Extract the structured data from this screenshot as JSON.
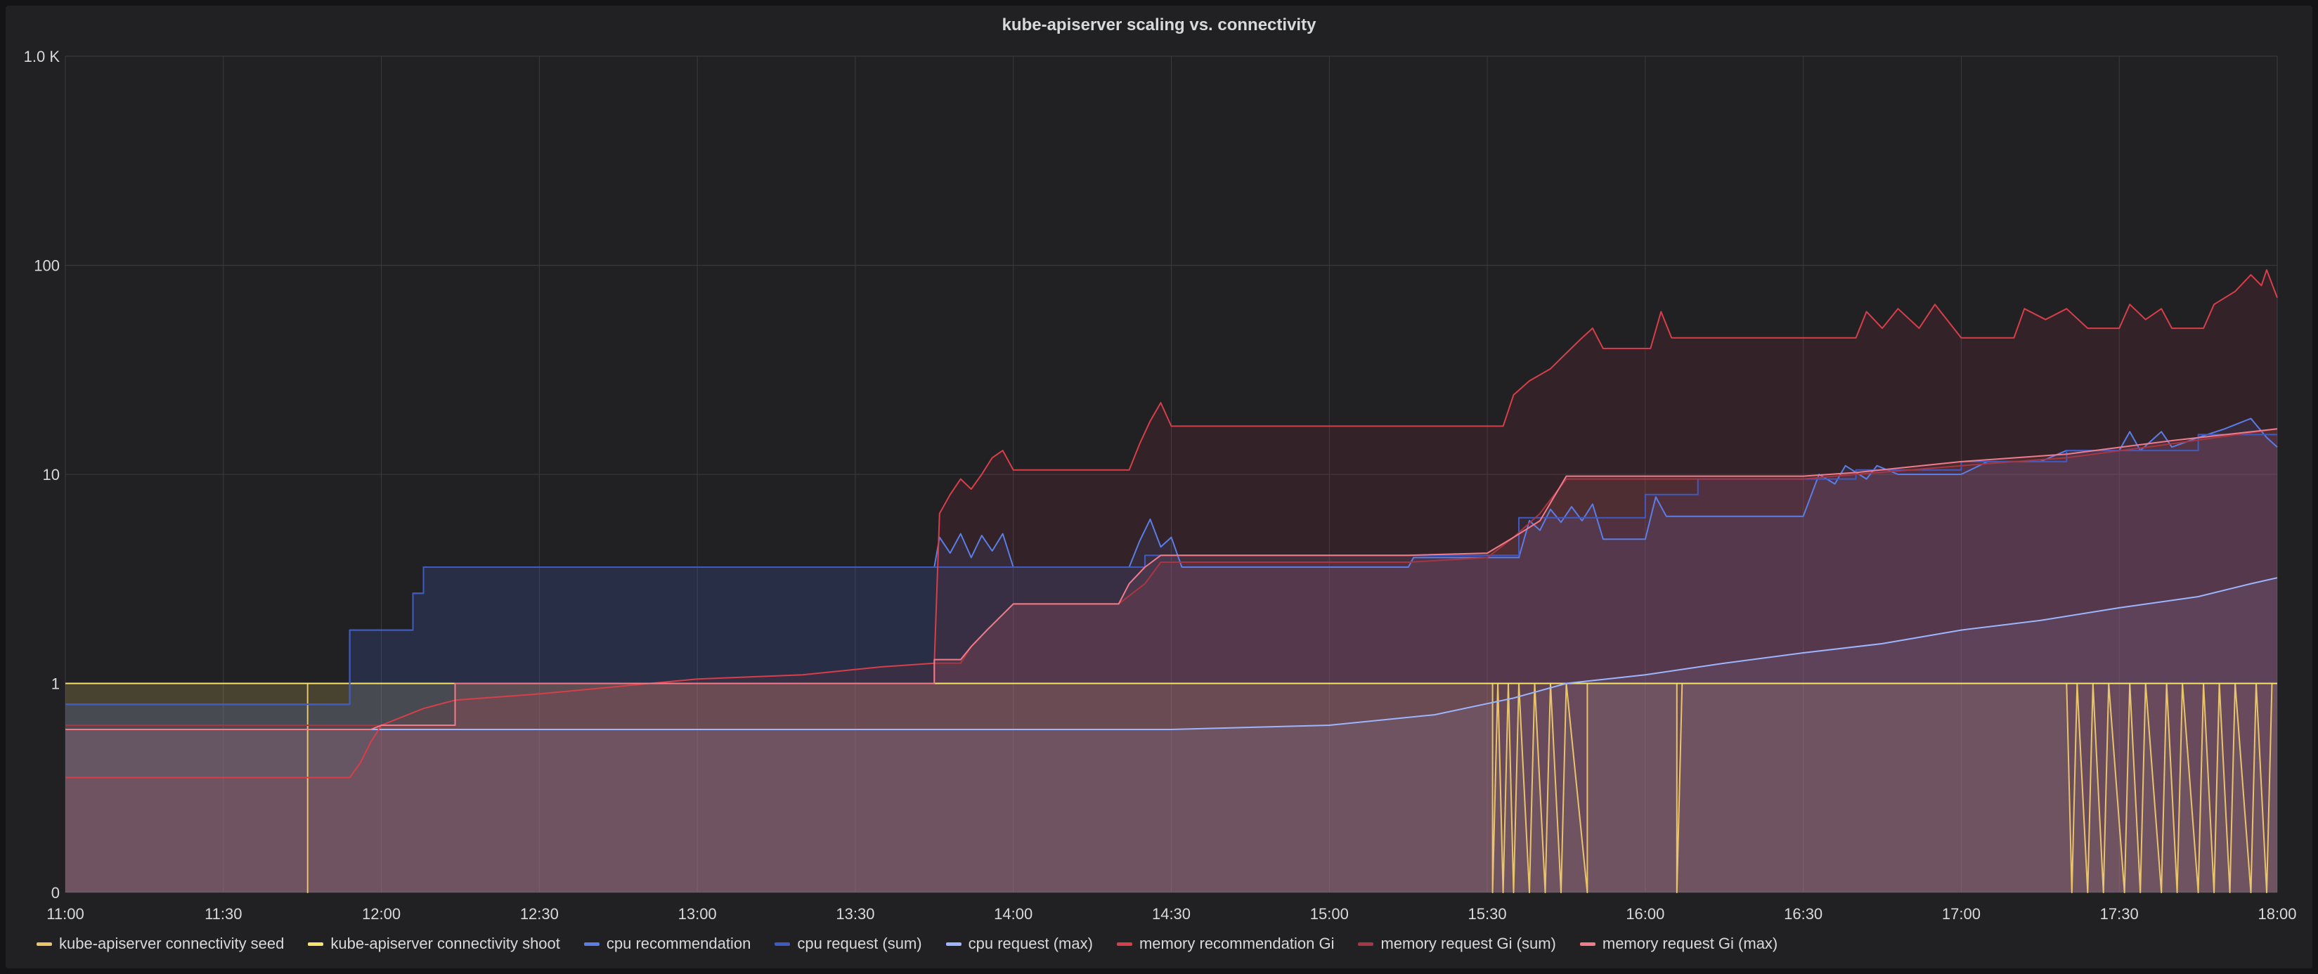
{
  "panel": {
    "title": "kube-apiserver scaling vs. connectivity"
  },
  "colors": {
    "background": "#212124",
    "grid": "#3a3b40",
    "text": "#d8d9da"
  },
  "chart_data": {
    "type": "line",
    "title": "kube-apiserver scaling vs. connectivity",
    "xlabel": "",
    "ylabel": "",
    "y_scale": "log",
    "grid": true,
    "legend_position": "bottom",
    "x_ticks": [
      "11:00",
      "11:30",
      "12:00",
      "12:30",
      "13:00",
      "13:30",
      "14:00",
      "14:30",
      "15:00",
      "15:30",
      "16:00",
      "16:30",
      "17:00",
      "17:30",
      "18:00"
    ],
    "y_ticks": [
      "0",
      "1",
      "10",
      "100",
      "1.0 K"
    ],
    "xlim": [
      "11:00",
      "18:00"
    ],
    "ylim": [
      0,
      1000
    ],
    "series": [
      {
        "name": "kube-apiserver connectivity seed",
        "color": "#e8c46a",
        "points": [
          [
            "11:00",
            1
          ],
          [
            "11:46",
            1
          ],
          [
            "11:46",
            0
          ],
          [
            "11:46",
            1
          ],
          [
            "15:31",
            1
          ],
          [
            "15:31",
            0
          ],
          [
            "15:32",
            1
          ],
          [
            "15:33",
            0
          ],
          [
            "15:34",
            1
          ],
          [
            "15:35",
            0
          ],
          [
            "15:36",
            1
          ],
          [
            "15:38",
            0
          ],
          [
            "15:39",
            1
          ],
          [
            "15:41",
            0
          ],
          [
            "15:42",
            1
          ],
          [
            "15:44",
            0
          ],
          [
            "15:45",
            1
          ],
          [
            "15:49",
            0
          ],
          [
            "15:49",
            1
          ],
          [
            "16:06",
            1
          ],
          [
            "16:06",
            0
          ],
          [
            "16:07",
            1
          ],
          [
            "17:20",
            1
          ],
          [
            "17:21",
            0
          ],
          [
            "17:22",
            1
          ],
          [
            "17:24",
            0
          ],
          [
            "17:25",
            1
          ],
          [
            "17:27",
            0
          ],
          [
            "17:28",
            1
          ],
          [
            "17:31",
            0
          ],
          [
            "17:32",
            1
          ],
          [
            "17:34",
            0
          ],
          [
            "17:35",
            1
          ],
          [
            "17:38",
            0
          ],
          [
            "17:39",
            1
          ],
          [
            "17:41",
            0
          ],
          [
            "17:42",
            1
          ],
          [
            "17:45",
            0
          ],
          [
            "17:46",
            1
          ],
          [
            "17:48",
            0
          ],
          [
            "17:49",
            1
          ],
          [
            "17:51",
            0
          ],
          [
            "17:52",
            1
          ],
          [
            "17:55",
            0
          ],
          [
            "17:56",
            1
          ],
          [
            "17:58",
            0
          ],
          [
            "17:59",
            1
          ],
          [
            "18:00",
            1
          ]
        ]
      },
      {
        "name": "kube-apiserver connectivity shoot",
        "color": "#f5e36b",
        "points": [
          [
            "11:00",
            1
          ],
          [
            "18:00",
            1
          ]
        ]
      },
      {
        "name": "cpu recommendation",
        "color": "#5a7de6",
        "points": [
          [
            "11:00",
            0.9
          ],
          [
            "11:54",
            0.9
          ],
          [
            "11:54",
            1.8
          ],
          [
            "12:06",
            1.8
          ],
          [
            "12:06",
            2.7
          ],
          [
            "12:08",
            2.7
          ],
          [
            "12:08",
            3.6
          ],
          [
            "13:45",
            3.6
          ],
          [
            "13:46",
            5.0
          ],
          [
            "13:48",
            4.2
          ],
          [
            "13:50",
            5.2
          ],
          [
            "13:52",
            4.0
          ],
          [
            "13:54",
            5.1
          ],
          [
            "13:56",
            4.3
          ],
          [
            "13:58",
            5.2
          ],
          [
            "14:00",
            3.6
          ],
          [
            "14:22",
            3.6
          ],
          [
            "14:24",
            4.8
          ],
          [
            "14:26",
            6.1
          ],
          [
            "14:28",
            4.5
          ],
          [
            "14:30",
            5.0
          ],
          [
            "14:32",
            3.6
          ],
          [
            "15:15",
            3.6
          ],
          [
            "15:16",
            4.0
          ],
          [
            "15:36",
            4.0
          ],
          [
            "15:38",
            6.0
          ],
          [
            "15:40",
            5.4
          ],
          [
            "15:42",
            6.8
          ],
          [
            "15:44",
            5.9
          ],
          [
            "15:46",
            7.0
          ],
          [
            "15:48",
            6.0
          ],
          [
            "15:50",
            7.2
          ],
          [
            "15:52",
            4.9
          ],
          [
            "16:00",
            4.9
          ],
          [
            "16:02",
            7.8
          ],
          [
            "16:04",
            6.3
          ],
          [
            "16:30",
            6.3
          ],
          [
            "16:33",
            10.0
          ],
          [
            "16:36",
            9.0
          ],
          [
            "16:38",
            11.0
          ],
          [
            "16:42",
            9.5
          ],
          [
            "16:44",
            11.0
          ],
          [
            "16:48",
            10.0
          ],
          [
            "17:00",
            10.0
          ],
          [
            "17:05",
            11.5
          ],
          [
            "17:15",
            11.5
          ],
          [
            "17:20",
            13.0
          ],
          [
            "17:30",
            13.0
          ],
          [
            "17:32",
            16.0
          ],
          [
            "17:34",
            13.0
          ],
          [
            "17:38",
            16.0
          ],
          [
            "17:40",
            13.5
          ],
          [
            "17:45",
            15.0
          ],
          [
            "17:50",
            16.5
          ],
          [
            "17:55",
            18.5
          ],
          [
            "17:58",
            15.0
          ],
          [
            "18:00",
            13.5
          ]
        ]
      },
      {
        "name": "cpu request (sum)",
        "color": "#3f5bc2",
        "points": [
          [
            "11:00",
            0.9
          ],
          [
            "11:54",
            0.9
          ],
          [
            "11:54",
            1.8
          ],
          [
            "12:06",
            1.8
          ],
          [
            "12:06",
            2.7
          ],
          [
            "12:08",
            2.7
          ],
          [
            "12:08",
            3.6
          ],
          [
            "14:25",
            3.6
          ],
          [
            "14:25",
            4.1
          ],
          [
            "15:36",
            4.1
          ],
          [
            "15:36",
            6.2
          ],
          [
            "16:00",
            6.2
          ],
          [
            "16:00",
            8.0
          ],
          [
            "16:10",
            8.0
          ],
          [
            "16:10",
            9.5
          ],
          [
            "16:40",
            9.5
          ],
          [
            "16:40",
            10.5
          ],
          [
            "17:00",
            10.5
          ],
          [
            "17:00",
            11.5
          ],
          [
            "17:20",
            11.5
          ],
          [
            "17:20",
            13.0
          ],
          [
            "17:45",
            13.0
          ],
          [
            "17:45",
            15.5
          ],
          [
            "18:00",
            15.5
          ]
        ]
      },
      {
        "name": "cpu request (max)",
        "color": "#9db5ff",
        "points": [
          [
            "11:00",
            0.78
          ],
          [
            "13:45",
            0.78
          ],
          [
            "14:00",
            0.78
          ],
          [
            "14:30",
            0.78
          ],
          [
            "15:00",
            0.8
          ],
          [
            "15:20",
            0.85
          ],
          [
            "15:35",
            0.93
          ],
          [
            "15:45",
            1.0
          ],
          [
            "16:00",
            1.1
          ],
          [
            "16:15",
            1.25
          ],
          [
            "16:30",
            1.4
          ],
          [
            "16:45",
            1.55
          ],
          [
            "17:00",
            1.8
          ],
          [
            "17:15",
            2.0
          ],
          [
            "17:30",
            2.3
          ],
          [
            "17:45",
            2.6
          ],
          [
            "17:55",
            3.0
          ],
          [
            "18:00",
            3.2
          ]
        ]
      },
      {
        "name": "memory recommendation Gi",
        "color": "#d63f4a",
        "points": [
          [
            "11:00",
            0.55
          ],
          [
            "11:54",
            0.55
          ],
          [
            "11:56",
            0.62
          ],
          [
            "11:58",
            0.72
          ],
          [
            "12:00",
            0.8
          ],
          [
            "12:08",
            0.88
          ],
          [
            "12:14",
            0.92
          ],
          [
            "12:30",
            0.95
          ],
          [
            "13:00",
            1.05
          ],
          [
            "13:20",
            1.1
          ],
          [
            "13:35",
            1.2
          ],
          [
            "13:45",
            1.25
          ],
          [
            "13:46",
            6.5
          ],
          [
            "13:48",
            8.0
          ],
          [
            "13:50",
            9.5
          ],
          [
            "13:52",
            8.5
          ],
          [
            "13:54",
            10.0
          ],
          [
            "13:56",
            12.0
          ],
          [
            "13:58",
            13.0
          ],
          [
            "14:00",
            10.5
          ],
          [
            "14:22",
            10.5
          ],
          [
            "14:24",
            14.0
          ],
          [
            "14:26",
            18.0
          ],
          [
            "14:28",
            22.0
          ],
          [
            "14:30",
            17.0
          ],
          [
            "15:15",
            17.0
          ],
          [
            "15:33",
            17.0
          ],
          [
            "15:35",
            24.0
          ],
          [
            "15:38",
            28.0
          ],
          [
            "15:42",
            32.0
          ],
          [
            "15:45",
            38.0
          ],
          [
            "15:48",
            45.0
          ],
          [
            "15:50",
            50.0
          ],
          [
            "15:52",
            40.0
          ],
          [
            "16:01",
            40.0
          ],
          [
            "16:03",
            60.0
          ],
          [
            "16:05",
            45.0
          ],
          [
            "16:40",
            45.0
          ],
          [
            "16:42",
            60.0
          ],
          [
            "16:45",
            50.0
          ],
          [
            "16:48",
            62.0
          ],
          [
            "16:52",
            50.0
          ],
          [
            "16:55",
            65.0
          ],
          [
            "17:00",
            45.0
          ],
          [
            "17:10",
            45.0
          ],
          [
            "17:12",
            62.0
          ],
          [
            "17:16",
            55.0
          ],
          [
            "17:20",
            62.0
          ],
          [
            "17:24",
            50.0
          ],
          [
            "17:30",
            50.0
          ],
          [
            "17:32",
            65.0
          ],
          [
            "17:35",
            55.0
          ],
          [
            "17:38",
            62.0
          ],
          [
            "17:40",
            50.0
          ],
          [
            "17:46",
            50.0
          ],
          [
            "17:48",
            65.0
          ],
          [
            "17:52",
            75.0
          ],
          [
            "17:55",
            90.0
          ],
          [
            "17:57",
            80.0
          ],
          [
            "17:58",
            95.0
          ],
          [
            "18:00",
            70.0
          ]
        ]
      },
      {
        "name": "memory request Gi (sum)",
        "color": "#a83642",
        "points": [
          [
            "11:00",
            0.8
          ],
          [
            "12:14",
            0.8
          ],
          [
            "12:14",
            1.0
          ],
          [
            "13:45",
            1.0
          ],
          [
            "13:45",
            1.25
          ],
          [
            "13:50",
            1.25
          ],
          [
            "13:52",
            1.5
          ],
          [
            "13:55",
            1.8
          ],
          [
            "14:00",
            2.4
          ],
          [
            "14:20",
            2.4
          ],
          [
            "14:25",
            3.0
          ],
          [
            "14:28",
            3.8
          ],
          [
            "15:15",
            3.8
          ],
          [
            "15:30",
            4.0
          ],
          [
            "15:35",
            5.0
          ],
          [
            "15:40",
            6.5
          ],
          [
            "15:45",
            9.5
          ],
          [
            "16:00",
            9.5
          ],
          [
            "16:30",
            9.5
          ],
          [
            "16:40",
            10.0
          ],
          [
            "17:00",
            11.0
          ],
          [
            "17:20",
            12.0
          ],
          [
            "17:40",
            14.0
          ],
          [
            "18:00",
            16.5
          ]
        ]
      },
      {
        "name": "memory request Gi (max)",
        "color": "#f07c8a",
        "points": [
          [
            "11:00",
            0.78
          ],
          [
            "11:58",
            0.78
          ],
          [
            "12:00",
            0.8
          ],
          [
            "12:14",
            0.8
          ],
          [
            "12:14",
            1.0
          ],
          [
            "13:45",
            1.0
          ],
          [
            "13:45",
            1.3
          ],
          [
            "13:50",
            1.3
          ],
          [
            "13:52",
            1.5
          ],
          [
            "13:55",
            1.8
          ],
          [
            "14:00",
            2.4
          ],
          [
            "14:20",
            2.4
          ],
          [
            "14:22",
            3.0
          ],
          [
            "14:25",
            3.6
          ],
          [
            "14:28",
            4.1
          ],
          [
            "15:15",
            4.1
          ],
          [
            "15:30",
            4.2
          ],
          [
            "15:35",
            5.0
          ],
          [
            "15:40",
            6.0
          ],
          [
            "15:45",
            9.8
          ],
          [
            "16:30",
            9.8
          ],
          [
            "16:40",
            10.2
          ],
          [
            "17:00",
            11.5
          ],
          [
            "17:20",
            12.5
          ],
          [
            "17:40",
            14.5
          ],
          [
            "18:00",
            16.5
          ]
        ]
      }
    ]
  }
}
